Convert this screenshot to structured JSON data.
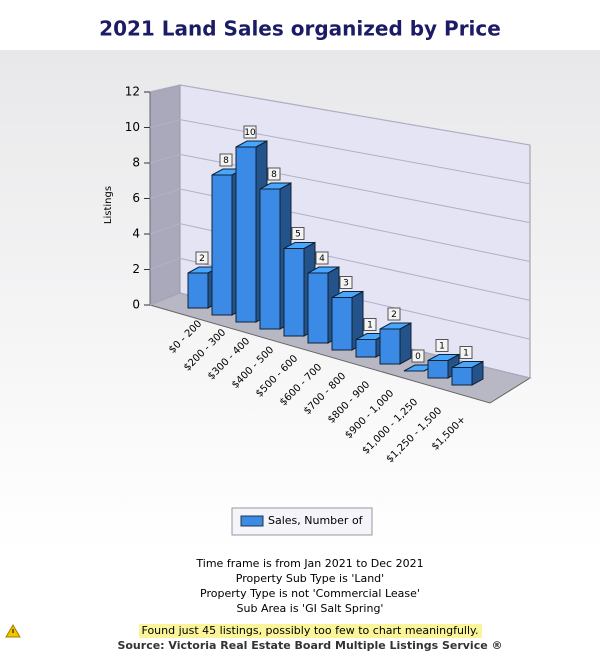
{
  "chart_data": {
    "type": "bar",
    "title": "2021 Land Sales organized by Price",
    "y_label": "Listings",
    "categories": [
      "$0 - 200",
      "$200 - 300",
      "$300 - 400",
      "$400 - 500",
      "$500 - 600",
      "$600 - 700",
      "$700 - 800",
      "$800 - 900",
      "$900 - 1,000",
      "$1,000 - 1,250",
      "$1,250 - 1,500",
      "$1,500+"
    ],
    "series": [
      {
        "name": "Sales, Number of",
        "color": "#3b8be6",
        "values": [
          2,
          8,
          10,
          8,
          5,
          4,
          3,
          1,
          2,
          0,
          1,
          1
        ]
      }
    ],
    "ylim": [
      0,
      12
    ],
    "yticks": [
      0,
      2,
      4,
      6,
      8,
      10,
      12
    ],
    "grid": true,
    "legend": "bottom"
  },
  "notes": [
    "Time frame is from Jan 2021 to Dec 2021",
    "Property Sub Type is 'Land'",
    "Property Type is not 'Commercial Lease'",
    "Sub Area is 'GI Salt Spring'"
  ],
  "warning": "Found just 45 listings, possibly too few to chart meaningfully.",
  "source": "Source: Victoria Real Estate Board Multiple Listings Service ®"
}
